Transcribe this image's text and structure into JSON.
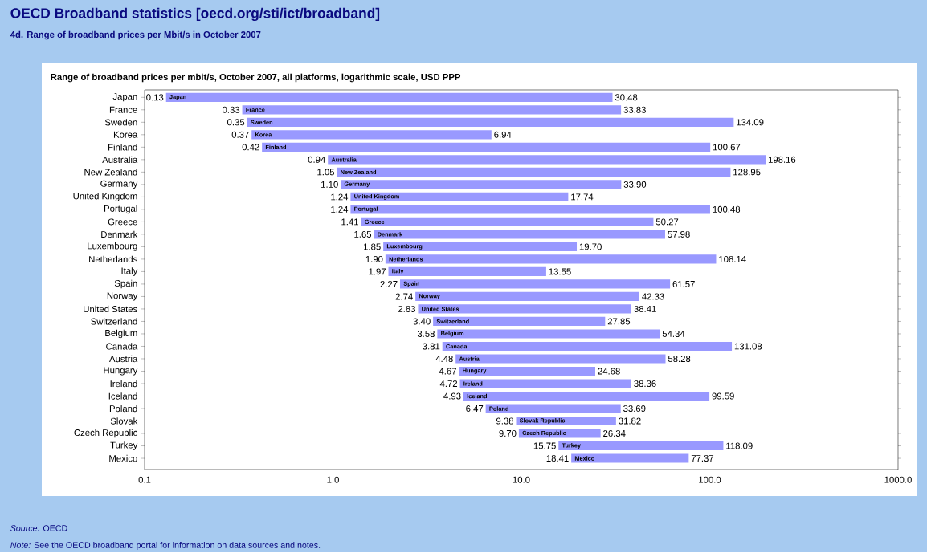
{
  "chart_data": {
    "type": "bar",
    "orientation": "horizontal",
    "log": "x",
    "title": "OECD Broadband statistics [oecd.org/sti/ict/broadband]",
    "subtitle": "4d. Range of broadband prices per Mbit/s in October 2007",
    "categories": [
      "Japan",
      "France",
      "Sweden",
      "Korea",
      "Finland",
      "Australia",
      "New Zealand",
      "Germany",
      "United Kingdom",
      "Portugal",
      "Greece",
      "Denmark",
      "Luxembourg",
      "Netherlands",
      "Italy",
      "Spain",
      "Norway",
      "United States",
      "Switzerland",
      "Belgium",
      "Canada",
      "Austria",
      "Hungary",
      "Ireland",
      "Iceland",
      "Poland",
      "Slovak",
      "Czech Republic",
      "Turkey",
      "Mexico"
    ],
    "base": [
      0.13,
      0.33,
      0.35,
      0.37,
      0.42,
      0.94,
      1.05,
      1.1,
      1.24,
      1.24,
      1.41,
      1.65,
      1.85,
      1.9,
      1.97,
      2.27,
      2.74,
      2.83,
      3.4,
      3.58,
      3.81,
      4.48,
      4.67,
      4.72,
      4.93,
      6.47,
      9.38,
      9.7,
      15.75,
      18.41
    ],
    "values": [
      30.35,
      33.5,
      133.74,
      6.57,
      100.25,
      197.22,
      127.9,
      32.8,
      16.5,
      99.24,
      48.86,
      56.33,
      17.85,
      106.24,
      11.58,
      59.3,
      39.59,
      35.58,
      24.45,
      50.76,
      127.27,
      53.8,
      20.01,
      33.64,
      94.66,
      27.22,
      22.44,
      16.64,
      102.34,
      58.96
    ],
    "value_labels": [
      "30.48",
      "33.83",
      "134.09",
      "6.94",
      "100.67",
      "198.16",
      "128.95",
      "33.90",
      "17.74",
      "100.48",
      "50.27",
      "57.98",
      "19.70",
      "108.14",
      "13.55",
      "61.57",
      "42.33",
      "38.41",
      "27.85",
      "54.34",
      "131.08",
      "58.28",
      "24.68",
      "38.36",
      "99.59",
      "33.69",
      "31.82",
      "26.34",
      "118.09",
      "77.37"
    ],
    "color": "#9999ff",
    "xlim": [
      0.1,
      1000
    ],
    "xticks": [
      0.1,
      {
        "value": 1,
        "label": "1.0"
      },
      {
        "value": 10,
        "label": "10.0"
      },
      {
        "value": 100,
        "label": "100.0"
      },
      {
        "value": 1000,
        "label": "1000.0"
      }
    ],
    "annotations": [
      "Range of broadband prices per mbit/s, October 2007, all platforms, logarithmic scale, USD PPP",
      "*Source:* OECD",
      "*Note:* See the OECD broadband portal for information on data sources and notes.",
      {
        "text": "0.13",
        "x": 0.13,
        "y": "Japan"
      },
      {
        "text": "Japan",
        "x": 0.13,
        "y": "Japan"
      },
      {
        "text": "0.33",
        "x": 0.33,
        "y": "France"
      },
      {
        "text": "France",
        "x": 0.33,
        "y": "France"
      },
      {
        "text": "0.35",
        "x": 0.35,
        "y": "Sweden"
      },
      {
        "text": "Sweden",
        "x": 0.35,
        "y": "Sweden"
      },
      {
        "text": "0.37",
        "x": 0.37,
        "y": "Korea"
      },
      {
        "text": "Korea",
        "x": 0.37,
        "y": "Korea"
      },
      {
        "text": "0.42",
        "x": 0.42,
        "y": "Finland"
      },
      {
        "text": "Finland",
        "x": 0.42,
        "y": "Finland"
      },
      {
        "text": "0.94",
        "x": 0.94,
        "y": "Australia"
      },
      {
        "text": "Australia",
        "x": 0.94,
        "y": "Australia"
      },
      {
        "text": "1.05",
        "x": 1.05,
        "y": "New Zealand"
      },
      {
        "text": "New Zealand",
        "x": 1.05,
        "y": "New Zealand"
      },
      {
        "text": "1.10",
        "x": 1.1,
        "y": "Germany"
      },
      {
        "text": "Germany",
        "x": 1.1,
        "y": "Germany"
      },
      {
        "text": "1.24",
        "x": 1.24,
        "y": "United Kingdom"
      },
      {
        "text": "United Kingdom",
        "x": 1.24,
        "y": "United Kingdom"
      },
      {
        "text": "1.24",
        "x": 1.24,
        "y": "Portugal"
      },
      {
        "text": "Portugal",
        "x": 1.24,
        "y": "Portugal"
      },
      {
        "text": "1.41",
        "x": 1.41,
        "y": "Greece"
      },
      {
        "text": "Greece",
        "x": 1.41,
        "y": "Greece"
      },
      {
        "text": "1.65",
        "x": 1.65,
        "y": "Denmark"
      },
      {
        "text": "Denmark",
        "x": 1.65,
        "y": "Denmark"
      },
      {
        "text": "1.85",
        "x": 1.85,
        "y": "Luxembourg"
      },
      {
        "text": "Luxembourg",
        "x": 1.85,
        "y": "Luxembourg"
      },
      {
        "text": "1.90",
        "x": 1.9,
        "y": "Netherlands"
      },
      {
        "text": "Netherlands",
        "x": 1.9,
        "y": "Netherlands"
      },
      {
        "text": "1.97",
        "x": 1.97,
        "y": "Italy"
      },
      {
        "text": "Italy",
        "x": 1.97,
        "y": "Italy"
      },
      {
        "text": "2.27",
        "x": 2.27,
        "y": "Spain"
      },
      {
        "text": "Spain",
        "x": 2.27,
        "y": "Spain"
      },
      {
        "text": "2.74",
        "x": 2.74,
        "y": "Norway"
      },
      {
        "text": "Norway",
        "x": 2.74,
        "y": "Norway"
      },
      {
        "text": "2.83",
        "x": 2.83,
        "y": "United States"
      },
      {
        "text": "United States",
        "x": 2.83,
        "y": "United States"
      },
      {
        "text": "3.40",
        "x": 3.4,
        "y": "Switzerland"
      },
      {
        "text": "Switzerland",
        "x": 3.4,
        "y": "Switzerland"
      },
      {
        "text": "3.58",
        "x": 3.58,
        "y": "Belgium"
      },
      {
        "text": "Belgium",
        "x": 3.58,
        "y": "Belgium"
      },
      {
        "text": "3.81",
        "x": 3.81,
        "y": "Canada"
      },
      {
        "text": "Canada",
        "x": 3.81,
        "y": "Canada"
      },
      {
        "text": "4.48",
        "x": 4.48,
        "y": "Austria"
      },
      {
        "text": "Austria",
        "x": 4.48,
        "y": "Austria"
      },
      {
        "text": "4.67",
        "x": 4.67,
        "y": "Hungary"
      },
      {
        "text": "Hungary",
        "x": 4.67,
        "y": "Hungary"
      },
      {
        "text": "4.72",
        "x": 4.72,
        "y": "Ireland"
      },
      {
        "text": "Ireland",
        "x": 4.72,
        "y": "Ireland"
      },
      {
        "text": "4.93",
        "x": 4.93,
        "y": "Iceland"
      },
      {
        "text": "Iceland",
        "x": 4.93,
        "y": "Iceland"
      },
      {
        "text": "6.47",
        "x": 6.47,
        "y": "Poland"
      },
      {
        "text": "Poland",
        "x": 6.47,
        "y": "Poland"
      },
      {
        "text": "9.38",
        "x": 9.38,
        "y": "Slovak"
      },
      {
        "text": "Slovak Republic",
        "x": 9.38,
        "y": "Slovak"
      },
      {
        "text": "9.70",
        "x": 9.7,
        "y": "Czech Republic"
      },
      {
        "text": "Czech Republic",
        "x": 9.7,
        "y": "Czech Republic"
      },
      {
        "text": "15.75",
        "x": 15.75,
        "y": "Turkey"
      },
      {
        "text": "Turkey",
        "x": 15.75,
        "y": "Turkey"
      },
      {
        "text": "18.41",
        "x": 18.41,
        "y": "Mexico"
      },
      {
        "text": "Mexico",
        "x": 18.41,
        "y": "Mexico"
      }
    ]
  }
}
